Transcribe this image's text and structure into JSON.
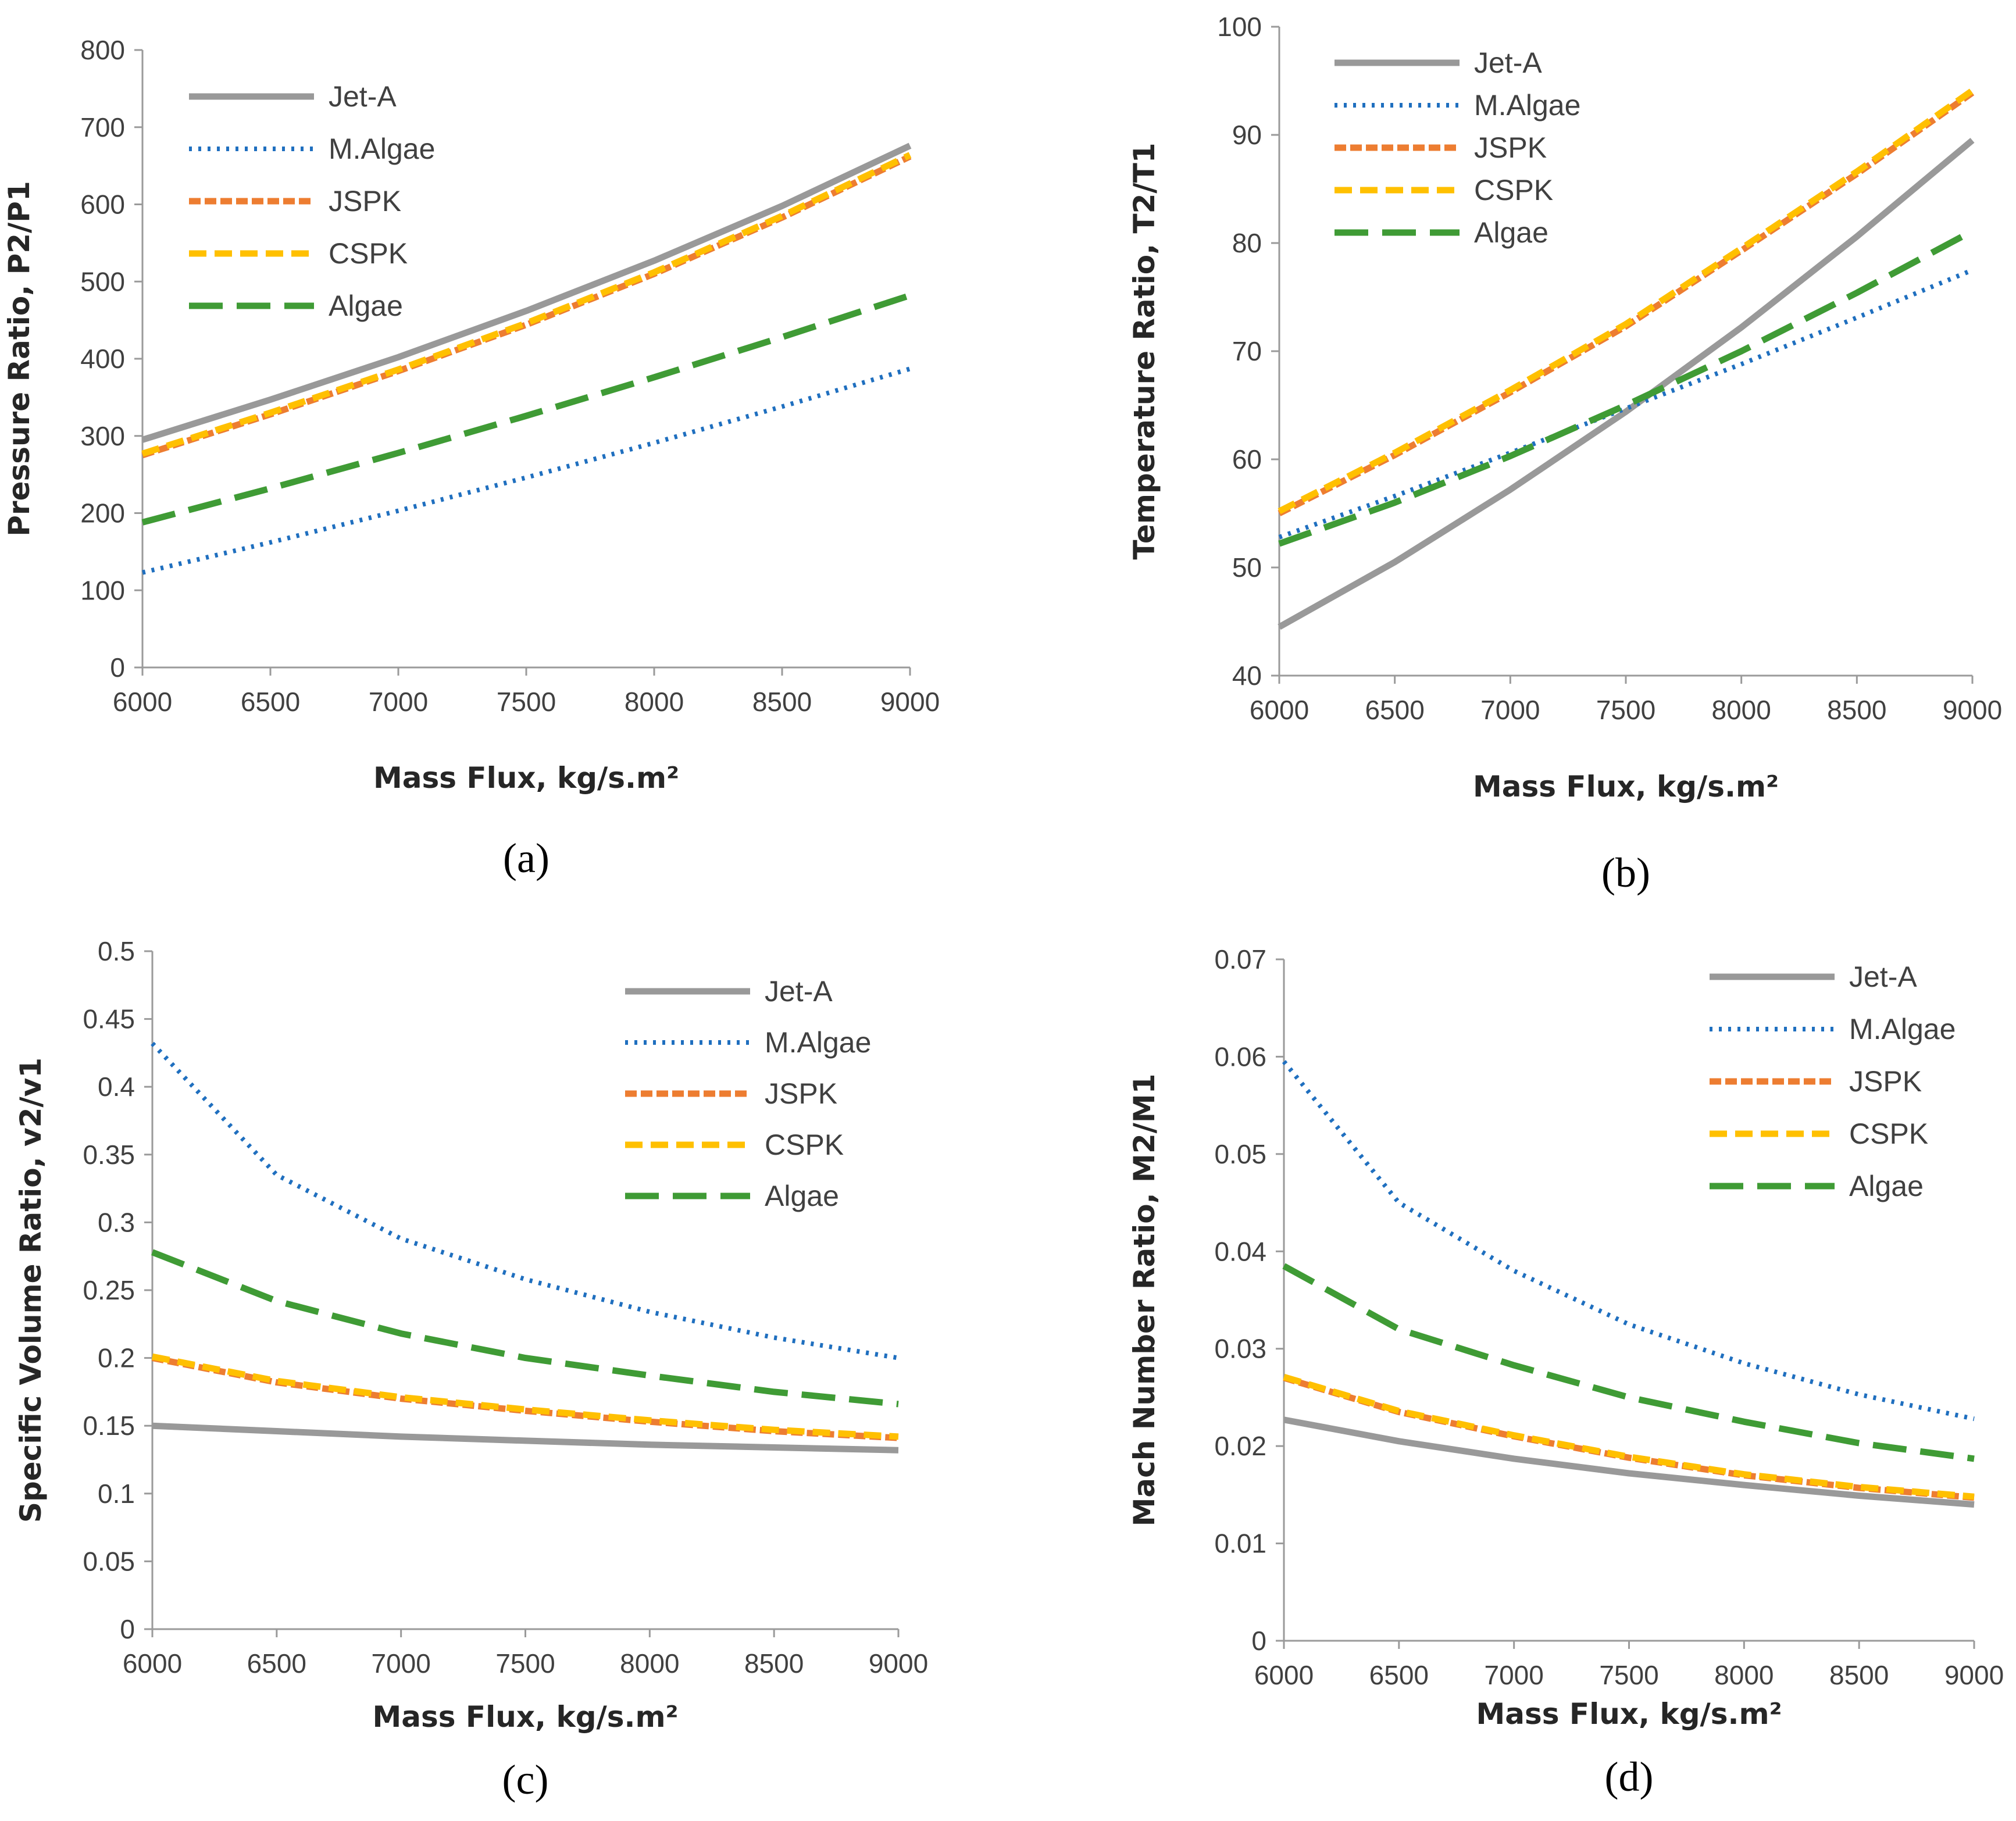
{
  "chart_data": [
    {
      "type": "line",
      "caption": "(a)",
      "xlabel": "Mass Flux, kg/s.m²",
      "ylabel": "Pressure Ratio, P2/P1",
      "x": [
        6000,
        6500,
        7000,
        7500,
        8000,
        8500,
        9000
      ],
      "xlim": [
        6000,
        9000
      ],
      "ylim": [
        0,
        800
      ],
      "xticks": [
        "6000",
        "6500",
        "7000",
        "7500",
        "8000",
        "8500",
        "9000"
      ],
      "yticks": [
        "0",
        "100",
        "200",
        "300",
        "400",
        "500",
        "600",
        "700",
        "800"
      ],
      "legend": "top-left",
      "series": [
        {
          "name": "Jet-A",
          "color": "#999999",
          "values": [
            295,
            347,
            402,
            462,
            527,
            598,
            676
          ]
        },
        {
          "name": "M.Algae",
          "color": "#1f6fbf",
          "values": [
            123,
            162,
            203,
            246,
            291,
            338,
            387
          ]
        },
        {
          "name": "JSPK",
          "color": "#ed7d31",
          "values": [
            275,
            328,
            384,
            444,
            510,
            583,
            662
          ]
        },
        {
          "name": "CSPK",
          "color": "#ffc000",
          "values": [
            277,
            330,
            386,
            446,
            512,
            585,
            664
          ]
        },
        {
          "name": "Algae",
          "color": "#3f9b35",
          "values": [
            188,
            232,
            278,
            326,
            376,
            428,
            482
          ]
        }
      ]
    },
    {
      "type": "line",
      "caption": "(b)",
      "xlabel": "Mass Flux, kg/s.m²",
      "ylabel": "Temperature Ratio, T2/T1",
      "x": [
        6000,
        6500,
        7000,
        7500,
        8000,
        8500,
        9000
      ],
      "xlim": [
        6000,
        9000
      ],
      "ylim": [
        40,
        100
      ],
      "xticks": [
        "6000",
        "6500",
        "7000",
        "7500",
        "8000",
        "8500",
        "9000"
      ],
      "yticks": [
        "40",
        "50",
        "60",
        "70",
        "80",
        "90",
        "100"
      ],
      "legend": "top-left",
      "series": [
        {
          "name": "Jet-A",
          "color": "#999999",
          "values": [
            44.5,
            50.5,
            57.2,
            64.4,
            72.2,
            80.6,
            89.5
          ]
        },
        {
          "name": "M.Algae",
          "color": "#1f6fbf",
          "values": [
            52.8,
            56.6,
            60.6,
            64.7,
            68.8,
            73.1,
            77.5
          ]
        },
        {
          "name": "JSPK",
          "color": "#ed7d31",
          "values": [
            55.0,
            60.4,
            66.2,
            72.3,
            79.3,
            86.4,
            93.9
          ]
        },
        {
          "name": "CSPK",
          "color": "#ffc000",
          "values": [
            55.2,
            60.6,
            66.4,
            72.5,
            79.5,
            86.6,
            94.1
          ]
        },
        {
          "name": "Algae",
          "color": "#3f9b35",
          "values": [
            52.2,
            56.0,
            60.3,
            65.0,
            70.0,
            75.4,
            81.1
          ]
        }
      ]
    },
    {
      "type": "line",
      "caption": "(c)",
      "xlabel": "Mass Flux, kg/s.m²",
      "ylabel": "Specific Volume Ratio, v2/v1",
      "x": [
        6000,
        6500,
        7000,
        7500,
        8000,
        8500,
        9000
      ],
      "xlim": [
        6000,
        9000
      ],
      "ylim": [
        0,
        0.5
      ],
      "xticks": [
        "6000",
        "6500",
        "7000",
        "7500",
        "8000",
        "8500",
        "9000"
      ],
      "yticks": [
        "0",
        "0.05",
        "0.1",
        "0.15",
        "0.2",
        "0.25",
        "0.3",
        "0.35",
        "0.4",
        "0.45",
        "0.5"
      ],
      "legend": "top-right",
      "series": [
        {
          "name": "Jet-A",
          "color": "#999999",
          "values": [
            0.15,
            0.146,
            0.142,
            0.139,
            0.136,
            0.134,
            0.132
          ]
        },
        {
          "name": "M.Algae",
          "color": "#1f6fbf",
          "values": [
            0.432,
            0.335,
            0.288,
            0.258,
            0.234,
            0.215,
            0.2
          ]
        },
        {
          "name": "JSPK",
          "color": "#ed7d31",
          "values": [
            0.2,
            0.182,
            0.17,
            0.161,
            0.153,
            0.146,
            0.141
          ]
        },
        {
          "name": "CSPK",
          "color": "#ffc000",
          "values": [
            0.201,
            0.183,
            0.171,
            0.162,
            0.154,
            0.147,
            0.142
          ]
        },
        {
          "name": "Algae",
          "color": "#3f9b35",
          "values": [
            0.278,
            0.242,
            0.218,
            0.2,
            0.187,
            0.175,
            0.166
          ]
        }
      ]
    },
    {
      "type": "line",
      "caption": "(d)",
      "xlabel": "Mass Flux, kg/s.m²",
      "ylabel": "Mach Number  Ratio, M2/M1",
      "x": [
        6000,
        6500,
        7000,
        7500,
        8000,
        8500,
        9000
      ],
      "xlim": [
        6000,
        9000
      ],
      "ylim": [
        0,
        0.07
      ],
      "xticks": [
        "6000",
        "6500",
        "7000",
        "7500",
        "8000",
        "8500",
        "9000"
      ],
      "yticks": [
        "0",
        "0.01",
        "0.02",
        "0.03",
        "0.04",
        "0.05",
        "0.06",
        "0.07"
      ],
      "legend": "top-right",
      "series": [
        {
          "name": "Jet-A",
          "color": "#999999",
          "values": [
            0.0227,
            0.0205,
            0.0187,
            0.0172,
            0.016,
            0.0149,
            0.014
          ]
        },
        {
          "name": "M.Algae",
          "color": "#1f6fbf",
          "values": [
            0.0595,
            0.045,
            0.038,
            0.0325,
            0.0285,
            0.0253,
            0.0228
          ]
        },
        {
          "name": "JSPK",
          "color": "#ed7d31",
          "values": [
            0.027,
            0.0235,
            0.021,
            0.0188,
            0.017,
            0.0157,
            0.0147
          ]
        },
        {
          "name": "CSPK",
          "color": "#ffc000",
          "values": [
            0.0271,
            0.0236,
            0.0211,
            0.0189,
            0.0171,
            0.0158,
            0.0148
          ]
        },
        {
          "name": "Algae",
          "color": "#3f9b35",
          "values": [
            0.0385,
            0.032,
            0.0283,
            0.025,
            0.0225,
            0.0203,
            0.0187
          ]
        }
      ]
    }
  ]
}
